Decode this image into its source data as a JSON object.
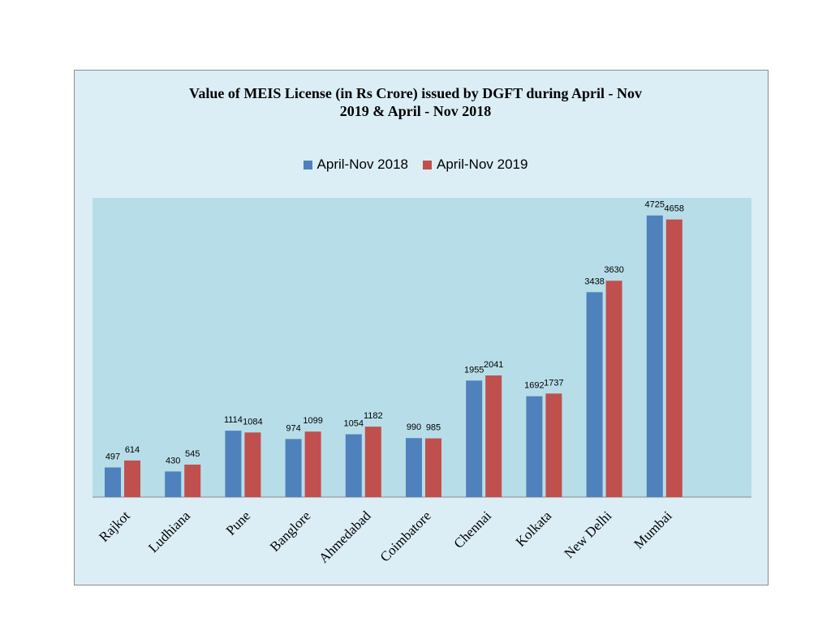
{
  "colors": {
    "series1": "#4f81bd",
    "series2": "#c0504d",
    "plot_bg": "#b7dde8",
    "frame_bg": "#dbeef5"
  },
  "chart_data": {
    "type": "bar",
    "title_lines": [
      "Value of MEIS License (in Rs Crore) issued by DGFT during April - Nov",
      "2019 & April - Nov 2018"
    ],
    "categories": [
      "Rajkot",
      "Ludhiana",
      "Pune",
      "Banglore",
      "Ahmedabad",
      "Coimbatore",
      "Chennai",
      "Kolkata",
      "New Delhi",
      "Mumbai"
    ],
    "series": [
      {
        "name": "April-Nov 2018",
        "values": [
          497,
          430,
          1114,
          974,
          1054,
          990,
          1955,
          1692,
          3438,
          4725
        ]
      },
      {
        "name": "April-Nov 2019",
        "values": [
          614,
          545,
          1084,
          1099,
          1182,
          985,
          2041,
          1737,
          3630,
          4658
        ]
      }
    ],
    "ylim": [
      0,
      5000
    ],
    "grid": false,
    "legend_position": "top"
  }
}
